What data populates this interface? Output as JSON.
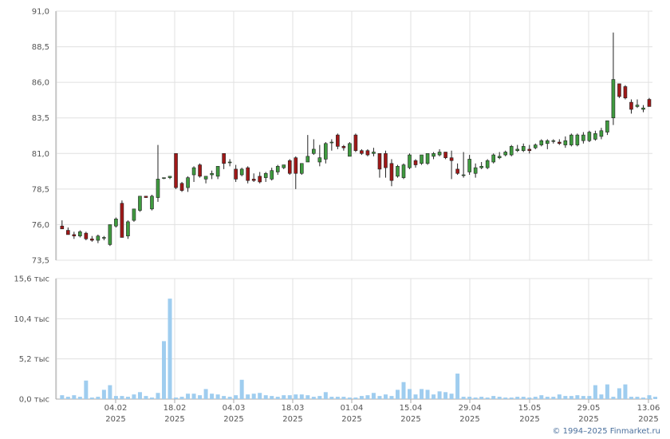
{
  "copyright": "© 1994–2025 Finmarket.ru",
  "colors": {
    "up": "#3f9a3f",
    "down": "#a01818",
    "volume": "#9fcdef",
    "grid": "#e0e0e0",
    "axis": "#aaaaaa"
  },
  "chart_data": [
    {
      "type": "candlestick",
      "title": "",
      "xlabel": "",
      "ylabel": "",
      "ylim": [
        73.5,
        91.0
      ],
      "yticks": [
        "91,0",
        "88,5",
        "86,0",
        "83,5",
        "81,0",
        "78,5",
        "76,0",
        "73,5"
      ],
      "grid": true,
      "ohlc": [
        [
          75.9,
          76.3,
          75.7,
          75.7
        ],
        [
          75.6,
          75.8,
          75.3,
          75.3
        ],
        [
          75.3,
          75.5,
          75.0,
          75.2
        ],
        [
          75.2,
          75.6,
          75.1,
          75.5
        ],
        [
          75.4,
          75.5,
          74.9,
          75.0
        ],
        [
          75.0,
          75.2,
          74.8,
          74.9
        ],
        [
          74.9,
          75.3,
          74.7,
          75.2
        ],
        [
          75.1,
          75.2,
          74.9,
          75.1
        ],
        [
          74.6,
          76.0,
          74.5,
          76.0
        ],
        [
          75.9,
          76.5,
          75.8,
          76.4
        ],
        [
          77.5,
          77.7,
          75.1,
          75.1
        ],
        [
          75.2,
          76.3,
          75.0,
          76.2
        ],
        [
          76.3,
          77.1,
          76.2,
          77.1
        ],
        [
          77.0,
          78.0,
          76.9,
          78.0
        ],
        [
          78.0,
          78.0,
          77.9,
          77.9
        ],
        [
          77.1,
          78.1,
          77.0,
          78.0
        ],
        [
          77.9,
          81.6,
          77.6,
          79.2
        ],
        [
          79.3,
          79.3,
          79.2,
          79.3
        ],
        [
          79.3,
          79.4,
          79.2,
          79.4
        ],
        [
          81.0,
          81.0,
          78.5,
          78.6
        ],
        [
          78.9,
          79.0,
          78.3,
          78.4
        ],
        [
          78.6,
          79.4,
          78.3,
          79.3
        ],
        [
          79.5,
          80.1,
          79.0,
          80.0
        ],
        [
          80.2,
          80.3,
          79.3,
          79.4
        ],
        [
          79.2,
          79.4,
          78.9,
          79.4
        ],
        [
          79.5,
          79.8,
          79.2,
          79.6
        ],
        [
          79.4,
          80.1,
          79.2,
          80.1
        ],
        [
          81.0,
          81.0,
          79.9,
          80.3
        ],
        [
          80.4,
          80.6,
          80.1,
          80.4
        ],
        [
          79.9,
          80.2,
          79.0,
          79.2
        ],
        [
          79.5,
          80.0,
          79.4,
          79.9
        ],
        [
          80.0,
          80.1,
          78.9,
          79.1
        ],
        [
          79.2,
          79.6,
          79.0,
          79.1
        ],
        [
          79.4,
          79.7,
          78.9,
          79.0
        ],
        [
          79.3,
          79.7,
          79.0,
          79.6
        ],
        [
          79.2,
          80.0,
          79.1,
          79.8
        ],
        [
          79.7,
          80.2,
          79.5,
          80.1
        ],
        [
          80.0,
          80.2,
          79.9,
          80.2
        ],
        [
          80.5,
          80.6,
          79.5,
          79.6
        ],
        [
          80.7,
          80.8,
          78.5,
          79.6
        ],
        [
          79.6,
          80.3,
          79.5,
          80.3
        ],
        [
          80.4,
          82.3,
          80.4,
          80.8
        ],
        [
          81.0,
          82.0,
          80.9,
          81.3
        ],
        [
          80.4,
          81.6,
          80.1,
          80.7
        ],
        [
          80.6,
          81.8,
          80.3,
          81.7
        ],
        [
          81.8,
          82.0,
          81.2,
          81.8
        ],
        [
          82.3,
          82.4,
          81.3,
          81.5
        ],
        [
          81.5,
          81.6,
          81.2,
          81.4
        ],
        [
          80.8,
          81.8,
          80.8,
          81.7
        ],
        [
          82.3,
          82.4,
          81.1,
          81.2
        ],
        [
          81.2,
          81.3,
          80.9,
          81.0
        ],
        [
          81.2,
          81.3,
          80.8,
          80.9
        ],
        [
          81.0,
          81.4,
          80.8,
          81.1
        ],
        [
          81.0,
          81.0,
          79.3,
          79.9
        ],
        [
          81.0,
          81.2,
          79.3,
          80.0
        ],
        [
          80.3,
          80.6,
          78.7,
          79.1
        ],
        [
          79.4,
          80.2,
          79.3,
          80.1
        ],
        [
          79.3,
          80.3,
          79.2,
          80.2
        ],
        [
          80.0,
          81.0,
          79.9,
          80.9
        ],
        [
          80.5,
          80.6,
          80.0,
          80.2
        ],
        [
          80.3,
          80.9,
          80.2,
          80.9
        ],
        [
          80.3,
          81.0,
          80.2,
          81.0
        ],
        [
          80.8,
          81.1,
          80.6,
          81.0
        ],
        [
          80.9,
          81.3,
          80.8,
          81.1
        ],
        [
          81.1,
          81.1,
          80.6,
          80.7
        ],
        [
          80.7,
          81.2,
          79.2,
          80.5
        ],
        [
          79.9,
          80.3,
          79.5,
          79.6
        ],
        [
          79.5,
          81.1,
          79.3,
          79.5
        ],
        [
          79.7,
          80.9,
          79.5,
          80.6
        ],
        [
          79.6,
          80.3,
          79.3,
          80.0
        ],
        [
          80.0,
          80.4,
          79.9,
          80.1
        ],
        [
          80.0,
          80.6,
          79.9,
          80.5
        ],
        [
          80.4,
          81.0,
          80.3,
          80.9
        ],
        [
          80.7,
          81.1,
          80.6,
          80.8
        ],
        [
          80.9,
          81.2,
          80.8,
          81.1
        ],
        [
          80.9,
          81.6,
          80.8,
          81.5
        ],
        [
          81.2,
          81.6,
          81.1,
          81.3
        ],
        [
          81.2,
          81.7,
          81.1,
          81.5
        ],
        [
          81.3,
          81.6,
          81.0,
          81.2
        ],
        [
          81.4,
          81.7,
          81.3,
          81.6
        ],
        [
          81.6,
          82.0,
          81.5,
          81.9
        ],
        [
          81.7,
          82.0,
          81.3,
          81.9
        ],
        [
          81.9,
          82.0,
          81.7,
          81.9
        ],
        [
          81.8,
          82.0,
          81.6,
          81.7
        ],
        [
          81.6,
          82.2,
          81.4,
          81.9
        ],
        [
          81.6,
          82.4,
          81.5,
          82.3
        ],
        [
          81.6,
          82.4,
          81.5,
          82.3
        ],
        [
          81.9,
          82.5,
          81.7,
          82.3
        ],
        [
          81.9,
          82.6,
          81.8,
          82.5
        ],
        [
          82.0,
          82.6,
          81.9,
          82.4
        ],
        [
          82.2,
          82.8,
          82.0,
          82.6
        ],
        [
          82.5,
          83.3,
          82.3,
          83.3
        ],
        [
          83.5,
          89.5,
          83.0,
          86.2
        ],
        [
          85.9,
          85.9,
          84.9,
          85.0
        ],
        [
          85.7,
          85.8,
          84.8,
          84.9
        ],
        [
          84.6,
          84.8,
          83.8,
          84.1
        ],
        [
          84.3,
          84.8,
          84.2,
          84.4
        ],
        [
          84.1,
          84.4,
          83.9,
          84.2
        ],
        [
          84.8,
          84.9,
          84.3,
          84.3
        ]
      ],
      "x_tick_labels": [
        {
          "date": "04.02",
          "year": "2025"
        },
        {
          "date": "18.02",
          "year": "2025"
        },
        {
          "date": "04.03",
          "year": "2025"
        },
        {
          "date": "18.03",
          "year": "2025"
        },
        {
          "date": "01.04",
          "year": "2025"
        },
        {
          "date": "15.04",
          "year": "2025"
        },
        {
          "date": "29.04",
          "year": "2025"
        },
        {
          "date": "15.05",
          "year": "2025"
        },
        {
          "date": "29.05",
          "year": "2025"
        },
        {
          "date": "13.06",
          "year": "2025"
        }
      ]
    },
    {
      "type": "bar",
      "title": "",
      "xlabel": "",
      "ylabel": "",
      "ylim": [
        0,
        15.6
      ],
      "yticks": [
        "15,6 тыс",
        "10,4 тыс",
        "5,2 тыс",
        "0,0 тыс"
      ],
      "grid": true,
      "values": [
        0.5,
        0.3,
        0.5,
        0.3,
        2.4,
        0.2,
        0.3,
        1.2,
        1.8,
        0.4,
        0.4,
        0.3,
        0.6,
        0.9,
        0.4,
        0.2,
        0.8,
        7.5,
        13.0,
        0.2,
        0.3,
        0.7,
        0.7,
        0.5,
        1.3,
        0.7,
        0.6,
        0.4,
        0.3,
        0.5,
        2.5,
        0.6,
        0.7,
        0.8,
        0.5,
        0.4,
        0.3,
        0.5,
        0.5,
        0.6,
        0.6,
        0.5,
        0.3,
        0.4,
        0.9,
        0.3,
        0.3,
        0.3,
        0.2,
        0.2,
        0.4,
        0.5,
        0.8,
        0.4,
        0.6,
        0.4,
        1.2,
        2.2,
        1.3,
        0.6,
        1.3,
        1.2,
        0.6,
        1.0,
        0.9,
        0.7,
        3.3,
        0.3,
        0.3,
        0.2,
        0.3,
        0.2,
        0.4,
        0.3,
        0.2,
        0.2,
        0.3,
        0.3,
        0.2,
        0.3,
        0.5,
        0.3,
        0.3,
        0.6,
        0.4,
        0.4,
        0.5,
        0.4,
        0.4,
        1.8,
        0.6,
        1.9,
        0.3,
        1.4,
        1.9,
        0.3,
        0.3,
        0.2,
        0.5,
        0.3
      ]
    }
  ]
}
